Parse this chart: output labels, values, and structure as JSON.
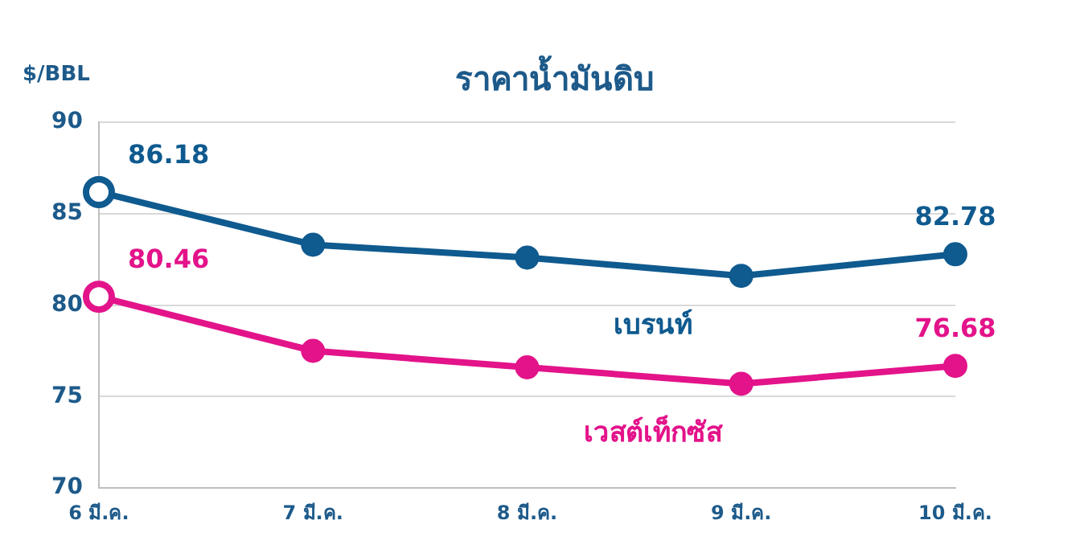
{
  "chart_data": {
    "type": "line",
    "title": "ราคาน้ำมันดิบ",
    "ylabel": "$/BBL",
    "categories": [
      "6 มี.ค.",
      "7 มี.ค.",
      "8 มี.ค.",
      "9 มี.ค.",
      "10 มี.ค."
    ],
    "series": [
      {
        "name": "เบรนท์",
        "color": "#0f5a8f",
        "values": [
          86.18,
          83.3,
          82.6,
          81.6,
          82.78
        ],
        "value_labels": [
          "86.18",
          null,
          null,
          null,
          "82.78"
        ]
      },
      {
        "name": "เวสต์เท็กซัส",
        "color": "#e3138a",
        "values": [
          80.46,
          77.5,
          76.6,
          75.7,
          76.68
        ],
        "value_labels": [
          "80.46",
          null,
          null,
          null,
          "76.68"
        ]
      }
    ],
    "ylim": [
      70,
      90
    ],
    "yticks": [
      70,
      75,
      80,
      85,
      90
    ],
    "grid": "y",
    "legend": false,
    "marker": "circle",
    "line_style": "solid"
  }
}
